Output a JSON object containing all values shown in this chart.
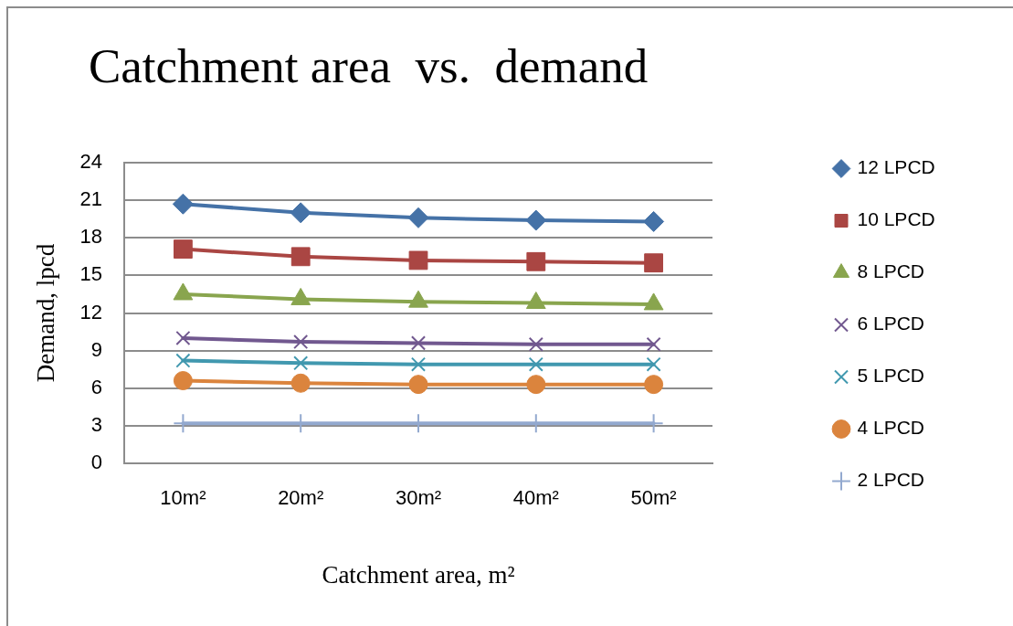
{
  "chart_data": {
    "type": "line",
    "title": "Catchment area  vs.  demand",
    "xlabel": "Catchment area, m²",
    "ylabel": "Demand, lpcd",
    "categories": [
      "10m²",
      "20m²",
      "30m²",
      "40m²",
      "50m²"
    ],
    "ylim": [
      0,
      24
    ],
    "yticks": [
      0,
      3,
      6,
      9,
      12,
      15,
      18,
      21,
      24
    ],
    "grid": "y",
    "legend": "right",
    "line_style": "solid",
    "series": [
      {
        "name": "12 LPCD",
        "color": "#4572a7",
        "marker": "diamond",
        "values": [
          20.7,
          20.0,
          19.6,
          19.4,
          19.3
        ]
      },
      {
        "name": "10 LPCD",
        "color": "#aa4643",
        "marker": "square",
        "values": [
          17.1,
          16.5,
          16.2,
          16.1,
          16.0
        ]
      },
      {
        "name": "8 LPCD",
        "color": "#89a54e",
        "marker": "triangle",
        "values": [
          13.5,
          13.1,
          12.9,
          12.8,
          12.7
        ]
      },
      {
        "name": "6 LPCD",
        "color": "#71588f",
        "marker": "cross",
        "values": [
          10.0,
          9.7,
          9.6,
          9.5,
          9.5
        ]
      },
      {
        "name": "5 LPCD",
        "color": "#4198af",
        "marker": "cross",
        "values": [
          8.2,
          8.0,
          7.9,
          7.9,
          7.9
        ]
      },
      {
        "name": "4 LPCD",
        "color": "#db843d",
        "marker": "circle",
        "values": [
          6.6,
          6.4,
          6.3,
          6.3,
          6.3
        ]
      },
      {
        "name": "2 LPCD",
        "color": "#93a9cf",
        "marker": "plus",
        "values": [
          3.2,
          3.2,
          3.2,
          3.2,
          3.2
        ]
      }
    ]
  }
}
